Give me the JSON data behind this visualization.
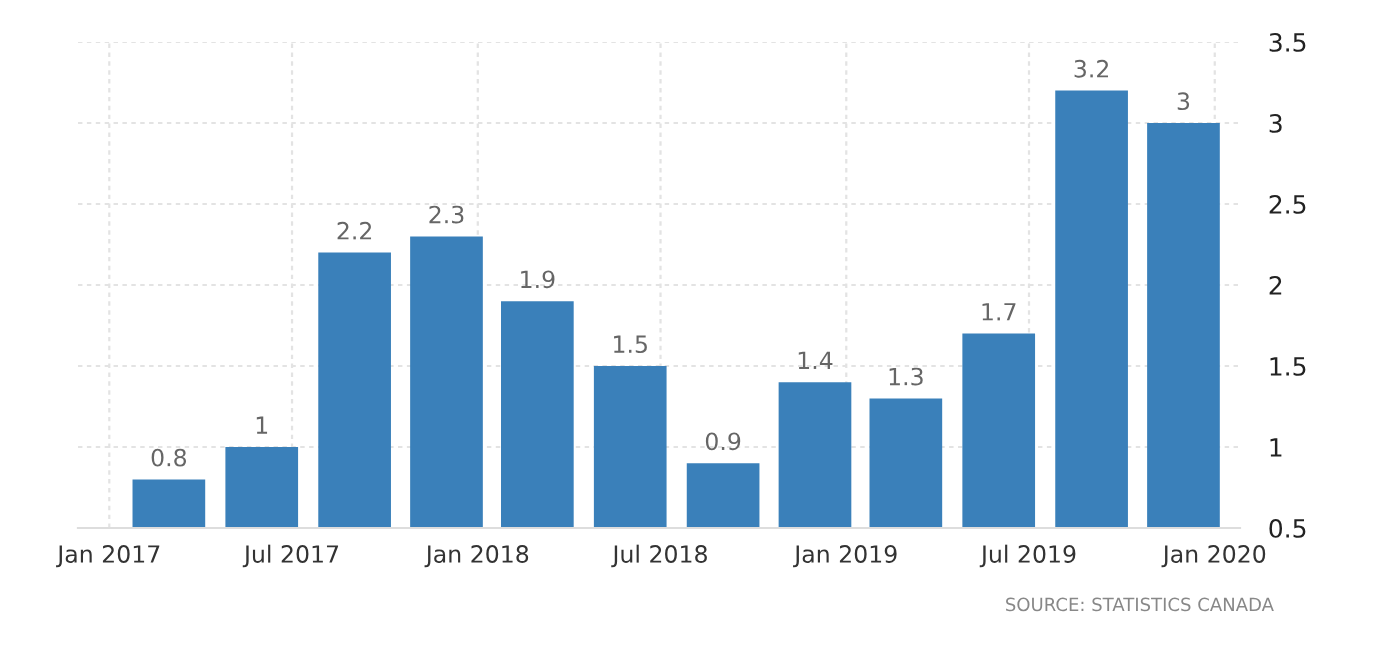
{
  "chart_data": {
    "type": "bar",
    "x": [
      "2017-03",
      "2017-06",
      "2017-09",
      "2017-12",
      "2018-03",
      "2018-06",
      "2018-09",
      "2018-12",
      "2019-03",
      "2019-06",
      "2019-09",
      "2019-12"
    ],
    "values": [
      0.8,
      1,
      2.2,
      2.3,
      1.9,
      1.5,
      0.9,
      1.4,
      1.3,
      1.7,
      3.2,
      3
    ],
    "color": "#3a80ba",
    "data_labels": true,
    "xlim": [
      "2016-12-01",
      "2020-01-26"
    ],
    "xticks": [
      {
        "value": "2017-01",
        "label": "Jan 2017"
      },
      {
        "value": "2017-07",
        "label": "Jul 2017"
      },
      {
        "value": "2018-01",
        "label": "Jan 2018"
      },
      {
        "value": "2018-07",
        "label": "Jul 2018"
      },
      {
        "value": "2019-01",
        "label": "Jan 2019"
      },
      {
        "value": "2019-07",
        "label": "Jul 2019"
      },
      {
        "value": "2020-01",
        "label": "Jan 2020"
      }
    ],
    "ylim": [
      0.5,
      3.5
    ],
    "yticks": [
      0.5,
      1,
      1.5,
      2,
      2.5,
      3,
      3.5
    ],
    "grid": true,
    "annotations": [
      "SOURCE: STATISTICS CANADA"
    ]
  }
}
